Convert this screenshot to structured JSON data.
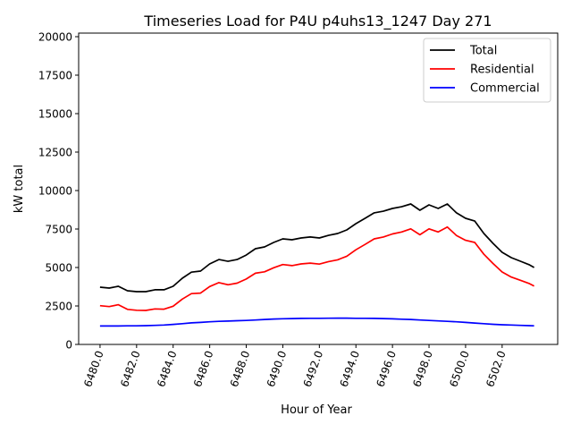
{
  "chart_data": {
    "type": "line",
    "title": "Timeseries Load for P4U p4uhs13_1247  Day 271",
    "xlabel": "Hour of Year",
    "ylabel": "kW total",
    "xlim": [
      6478.83,
      6505.04
    ],
    "ylim": [
      0,
      20233
    ],
    "xticks": [
      6480,
      6482,
      6484,
      6486,
      6488,
      6490,
      6492,
      6494,
      6496,
      6498,
      6500,
      6502
    ],
    "xtick_labels": [
      "6480.0",
      "6482.0",
      "6484.0",
      "6486.0",
      "6488.0",
      "6490.0",
      "6492.0",
      "6494.0",
      "6496.0",
      "6498.0",
      "6500.0",
      "6502.0"
    ],
    "yticks": [
      0,
      2500,
      5000,
      7500,
      10000,
      12500,
      15000,
      17500,
      20000
    ],
    "ytick_labels": [
      "0",
      "2500",
      "5000",
      "7500",
      "10000",
      "12500",
      "15000",
      "17500",
      "20000"
    ],
    "grid": false,
    "legend_position": "top-right",
    "x": [
      6480,
      6480.5,
      6481,
      6481.5,
      6482,
      6482.5,
      6483,
      6483.5,
      6484,
      6484.5,
      6485,
      6485.5,
      6486,
      6486.5,
      6487,
      6487.5,
      6488,
      6488.5,
      6489,
      6489.5,
      6490,
      6490.5,
      6491,
      6491.5,
      6492,
      6492.5,
      6493,
      6493.5,
      6494,
      6494.5,
      6495,
      6495.5,
      6496,
      6496.5,
      6497,
      6497.5,
      6498,
      6498.5,
      6499,
      6499.5,
      6500,
      6500.5,
      6501,
      6501.5,
      6502,
      6502.5,
      6503,
      6503.5,
      6503.75
    ],
    "series": [
      {
        "name": "Total",
        "color": "#000000",
        "values": [
          3720,
          3660,
          3780,
          3490,
          3430,
          3430,
          3550,
          3550,
          3780,
          4300,
          4700,
          4770,
          5230,
          5520,
          5400,
          5520,
          5810,
          6220,
          6340,
          6630,
          6860,
          6800,
          6920,
          6980,
          6920,
          7090,
          7210,
          7440,
          7850,
          8200,
          8550,
          8660,
          8840,
          8950,
          9130,
          8720,
          9070,
          8840,
          9130,
          8550,
          8200,
          8020,
          7210,
          6570,
          5990,
          5640,
          5410,
          5170,
          5000
        ]
      },
      {
        "name": "Residential",
        "color": "#ff0000",
        "values": [
          2520,
          2460,
          2580,
          2280,
          2220,
          2210,
          2310,
          2290,
          2480,
          2950,
          3300,
          3340,
          3760,
          4020,
          3880,
          3980,
          4250,
          4630,
          4720,
          4980,
          5190,
          5120,
          5230,
          5285,
          5220,
          5385,
          5500,
          5730,
          6150,
          6500,
          6860,
          6980,
          7180,
          7310,
          7510,
          7130,
          7510,
          7310,
          7630,
          7080,
          6770,
          6630,
          5860,
          5260,
          4710,
          4380,
          4170,
          3950,
          3790
        ]
      },
      {
        "name": "Commercial",
        "color": "#0000ff",
        "values": [
          1200,
          1200,
          1200,
          1210,
          1210,
          1220,
          1240,
          1260,
          1300,
          1350,
          1400,
          1430,
          1470,
          1500,
          1520,
          1540,
          1560,
          1590,
          1620,
          1650,
          1670,
          1680,
          1690,
          1695,
          1700,
          1705,
          1710,
          1710,
          1700,
          1700,
          1690,
          1680,
          1660,
          1640,
          1620,
          1590,
          1560,
          1530,
          1500,
          1470,
          1430,
          1390,
          1350,
          1310,
          1280,
          1260,
          1240,
          1220,
          1210
        ]
      }
    ]
  }
}
